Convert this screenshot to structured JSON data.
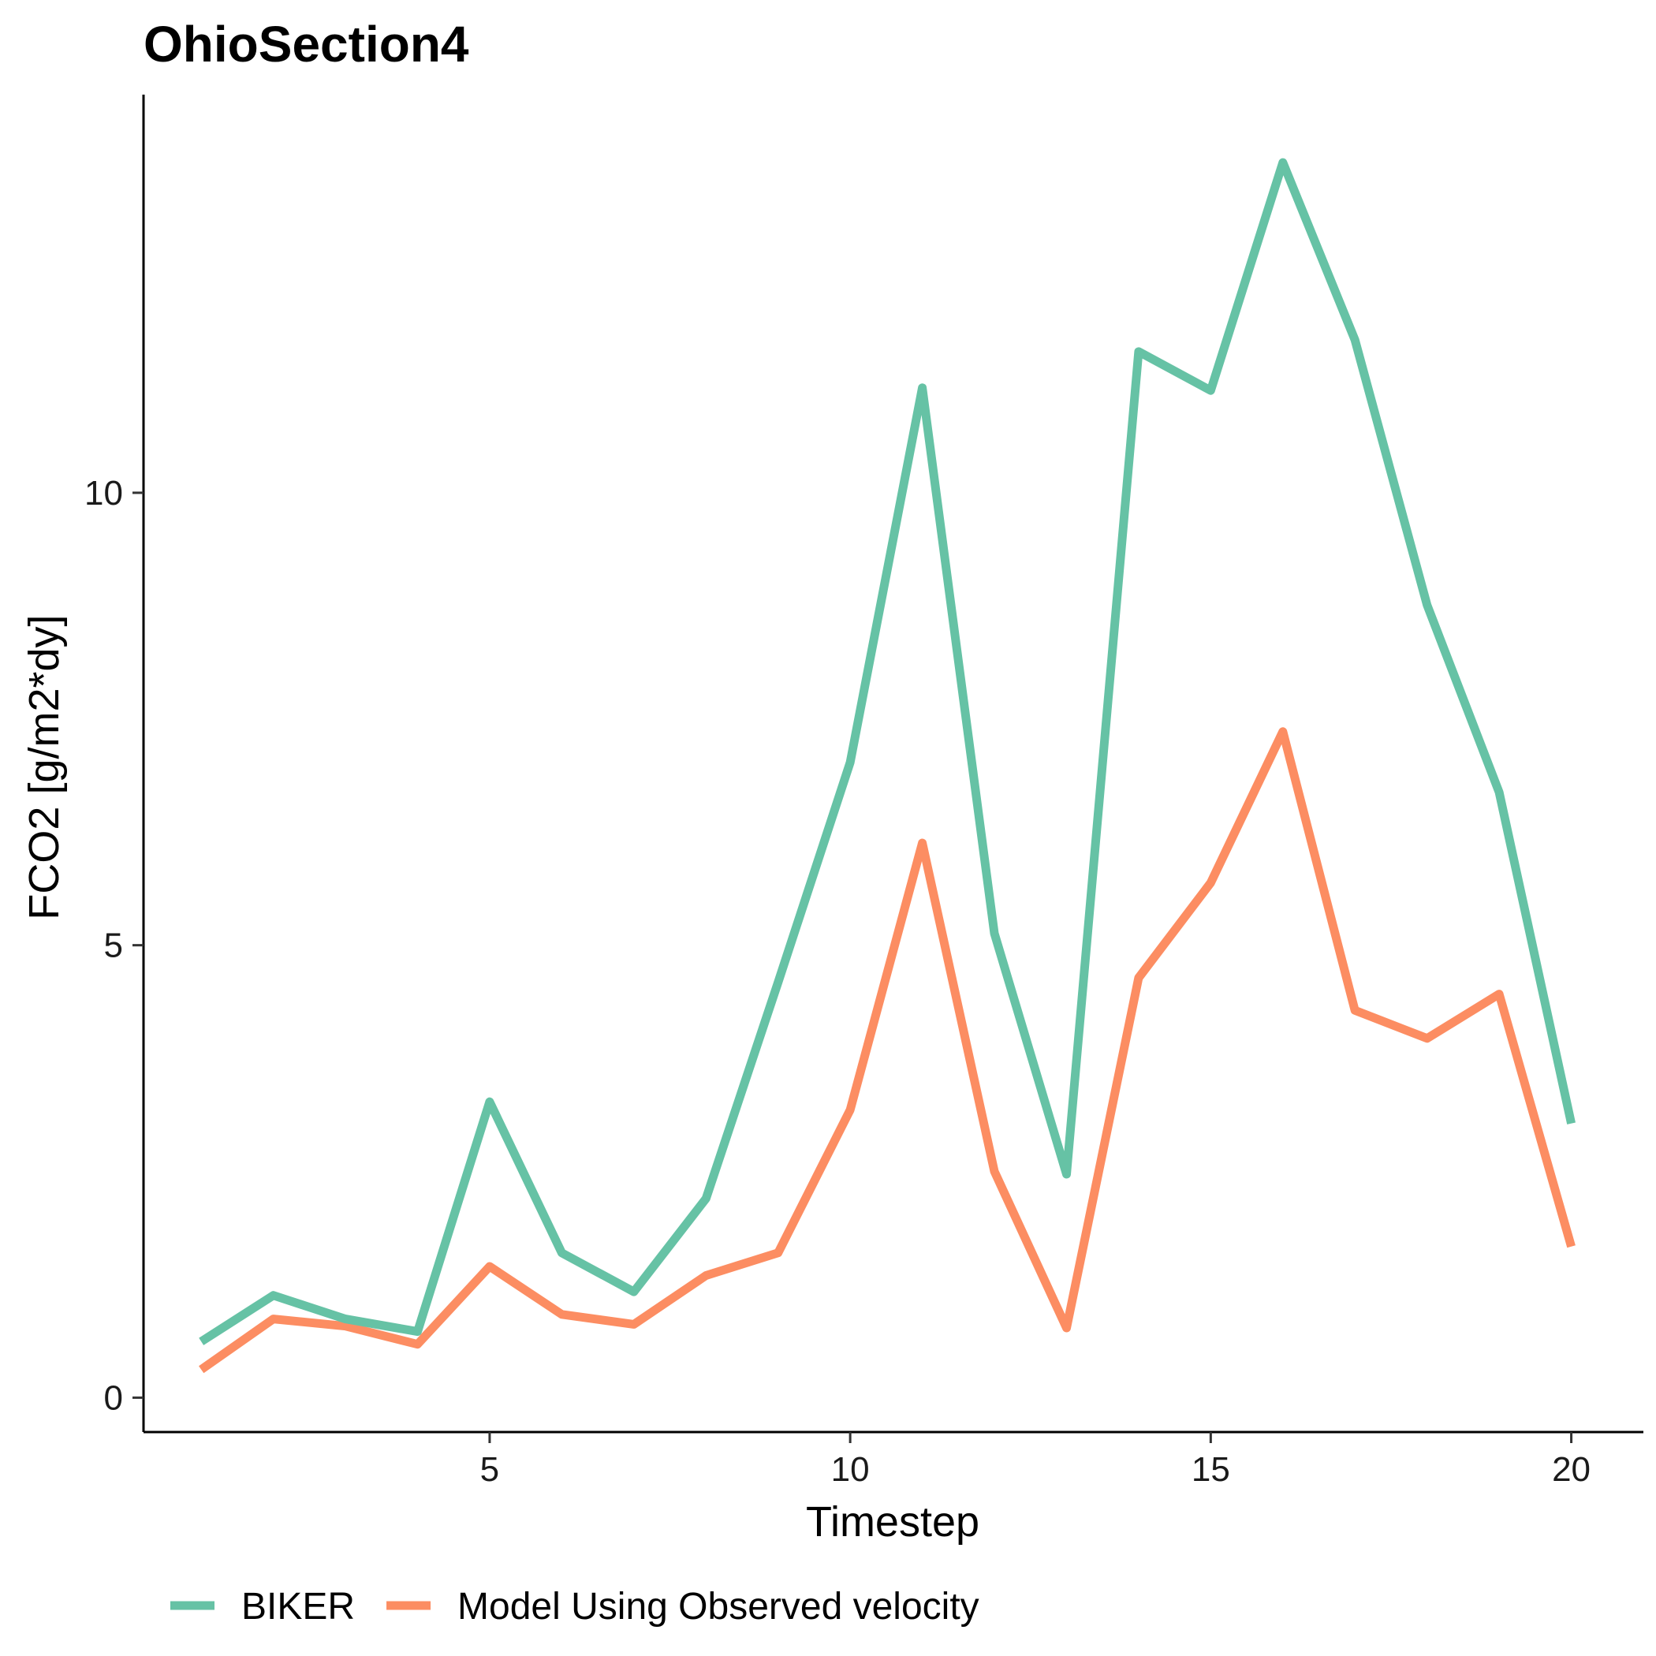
{
  "chart_data": {
    "type": "line",
    "title": "OhioSection4",
    "xlabel": "Timestep",
    "ylabel": "FCO2 [g/m2*dy]",
    "xlim": [
      0.2,
      21.0
    ],
    "ylim": [
      -0.38,
      14.4
    ],
    "x_ticks": [
      5,
      10,
      15,
      20
    ],
    "y_ticks": [
      0,
      5,
      10
    ],
    "grid": false,
    "legend_position": "bottom",
    "x": [
      1,
      2,
      3,
      4,
      5,
      6,
      7,
      8,
      9,
      10,
      11,
      12,
      13,
      14,
      15,
      16,
      17,
      18,
      19,
      20
    ],
    "series": [
      {
        "name": "BIKER",
        "color": "#66c2a5",
        "values": [
          0.62,
          1.13,
          0.87,
          0.73,
          3.27,
          1.6,
          1.17,
          2.2,
          4.59,
          7.02,
          11.16,
          5.13,
          2.47,
          11.56,
          11.13,
          13.65,
          11.69,
          8.76,
          6.69,
          3.03
        ]
      },
      {
        "name": "Model Using Observed velocity",
        "color": "#fc8d62",
        "values": [
          0.31,
          0.87,
          0.79,
          0.59,
          1.45,
          0.92,
          0.81,
          1.35,
          1.6,
          3.18,
          6.13,
          2.5,
          0.77,
          4.64,
          5.69,
          7.36,
          4.28,
          3.97,
          4.46,
          1.67
        ]
      }
    ]
  }
}
